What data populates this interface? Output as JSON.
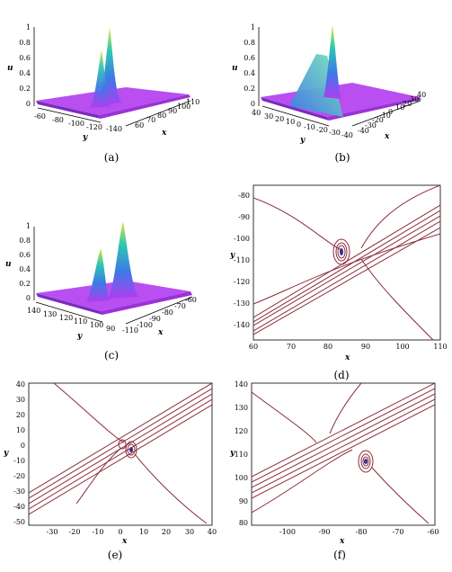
{
  "figure": {
    "panels": [
      {
        "id": "a",
        "caption": "(a)",
        "type": "surface3d",
        "zlabel": "u",
        "xlabel": "x",
        "ylabel": "y",
        "zticks": [
          "0",
          "0.2",
          "0.4",
          "0.6",
          "0.8",
          "1"
        ],
        "yticks": [
          "-60",
          "-80",
          "-100",
          "-120",
          "-140"
        ],
        "xticks": [
          "60",
          "70",
          "80",
          "90",
          "100",
          "110"
        ]
      },
      {
        "id": "b",
        "caption": "(b)",
        "type": "surface3d",
        "zlabel": "u",
        "xlabel": "x",
        "ylabel": "y",
        "zticks": [
          "0",
          "0.2",
          "0.4",
          "0.6",
          "0.8",
          "1"
        ],
        "yticks": [
          "40",
          "30",
          "20",
          "10",
          "0",
          "-10",
          "-20",
          "-30",
          "-40"
        ],
        "xticks": [
          "-40",
          "-30",
          "-20",
          "-10",
          "0",
          "10",
          "20",
          "30",
          "40"
        ]
      },
      {
        "id": "c",
        "caption": "(c)",
        "type": "surface3d",
        "zlabel": "u",
        "xlabel": "x",
        "ylabel": "y",
        "zticks": [
          "0",
          "0.2",
          "0.4",
          "0.6",
          "0.8",
          "1"
        ],
        "yticks": [
          "140",
          "130",
          "120",
          "110",
          "100",
          "90"
        ],
        "xticks": [
          "-110",
          "-100",
          "-90",
          "-80",
          "-70",
          "-60"
        ]
      },
      {
        "id": "d",
        "caption": "(d)",
        "type": "contour",
        "xlabel": "x",
        "ylabel": "y",
        "xlim": [
          60,
          110
        ],
        "ylim": [
          -145,
          -75
        ],
        "xticks": [
          "60",
          "70",
          "80",
          "90",
          "100",
          "110"
        ],
        "yticks": [
          "-80",
          "-90",
          "-100",
          "-110",
          "-120",
          "-130",
          "-140"
        ]
      },
      {
        "id": "e",
        "caption": "(e)",
        "type": "contour",
        "xlabel": "x",
        "ylabel": "y",
        "xlim": [
          -40,
          40
        ],
        "ylim": [
          -50,
          40
        ],
        "xticks": [
          "-30",
          "-20",
          "-10",
          "0",
          "10",
          "20",
          "30",
          "40"
        ],
        "yticks": [
          "40",
          "30",
          "20",
          "10",
          "0",
          "-10",
          "-20",
          "-30",
          "-40",
          "-50"
        ]
      },
      {
        "id": "f",
        "caption": "(f)",
        "type": "contour",
        "xlabel": "x",
        "ylabel": "y",
        "xlim": [
          -110,
          -60
        ],
        "ylim": [
          80,
          140
        ],
        "xticks": [
          "-100",
          "-90",
          "-80",
          "-70",
          "-60"
        ],
        "yticks": [
          "140",
          "130",
          "120",
          "110",
          "100",
          "90",
          "80"
        ]
      }
    ],
    "colors": {
      "contour": "#8b2c3c",
      "contour_core": "#3b2c8a",
      "surface_base": "#b13cf0",
      "surface_peak": "#2ec8b0"
    }
  }
}
